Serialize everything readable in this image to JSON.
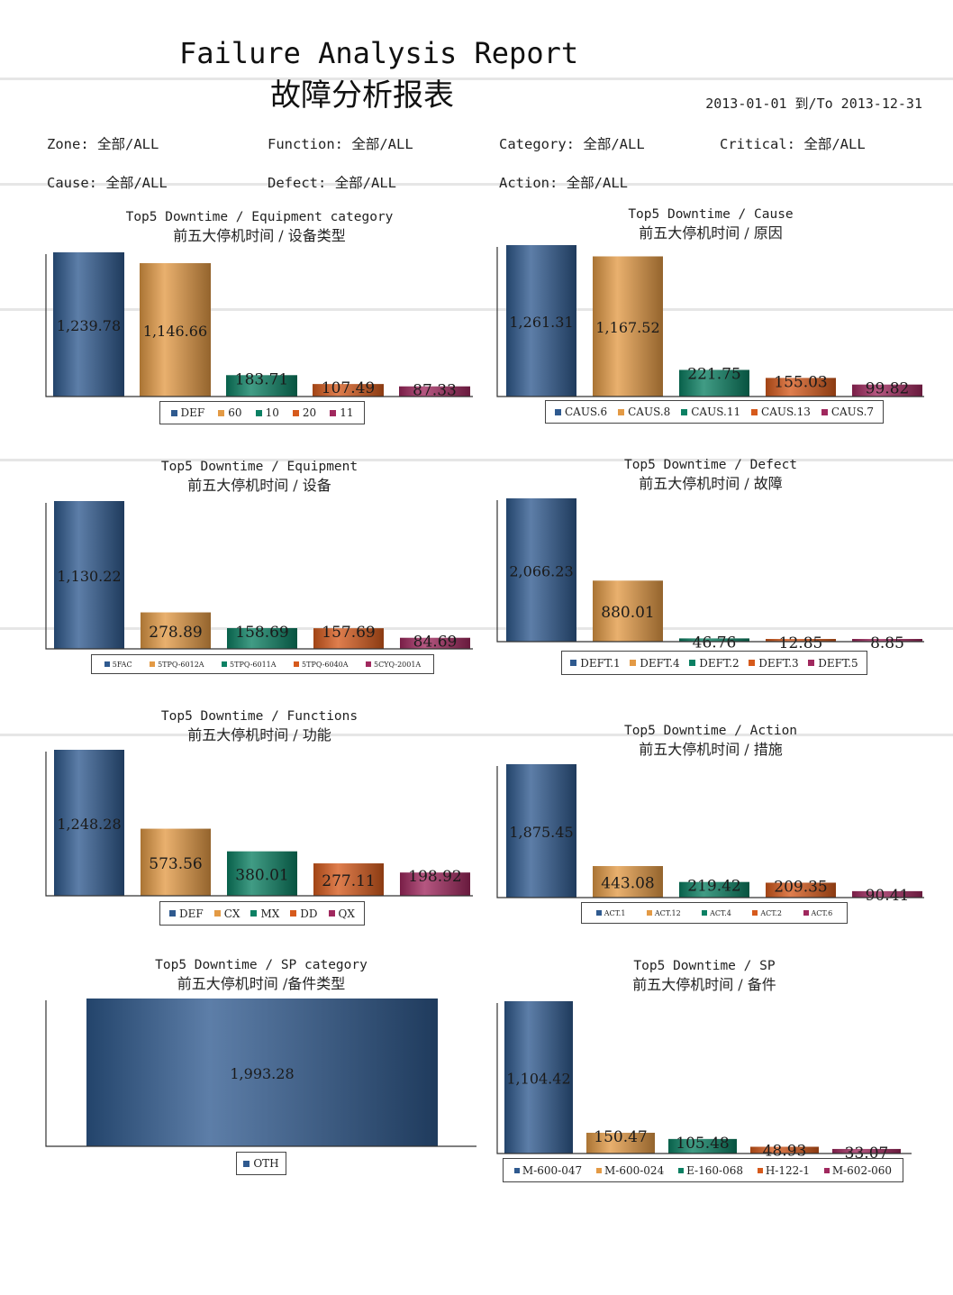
{
  "header": {
    "title_en": "Failure Analysis Report",
    "title_cn": "故障分析报表",
    "date_range": "2013-01-01 到/To 2013-12-31"
  },
  "filters": {
    "zone": "Zone: 全部/ALL",
    "function": "Function: 全部/ALL",
    "category": "Category: 全部/ALL",
    "critical": "Critical: 全部/ALL",
    "cause": "Cause: 全部/ALL",
    "defect": "Defect: 全部/ALL",
    "action": "Action: 全部/ALL"
  },
  "colors": {
    "series": [
      "#2f5a8f",
      "#e39a45",
      "#0b8063",
      "#d65a1c",
      "#a0285e"
    ]
  },
  "chart_data": [
    {
      "id": "equipment-category",
      "type": "bar",
      "title_en": "Top5 Downtime / Equipment category",
      "title_cn": "前五大停机时间 / 设备类型",
      "categories": [
        "DEF",
        "60",
        "10",
        "20",
        "11"
      ],
      "values": [
        1239.78,
        1146.66,
        183.71,
        107.49,
        87.33
      ],
      "labels": [
        "1,239.78",
        "1,146.66",
        "183.71",
        "107.49",
        "87.33"
      ],
      "ylim": [
        0,
        1239.78
      ],
      "legend_position": "bottom"
    },
    {
      "id": "cause",
      "type": "bar",
      "title_en": "Top5 Downtime / Cause",
      "title_cn": "前五大停机时间 / 原因",
      "categories": [
        "CAUS.6",
        "CAUS.8",
        "CAUS.11",
        "CAUS.13",
        "CAUS.7"
      ],
      "values": [
        1261.31,
        1167.52,
        221.75,
        155.03,
        99.82
      ],
      "labels": [
        "1,261.31",
        "1,167.52",
        "221.75",
        "155.03",
        "99.82"
      ],
      "ylim": [
        0,
        1261.31
      ],
      "legend_position": "bottom"
    },
    {
      "id": "equipment",
      "type": "bar",
      "title_en": "Top5 Downtime / Equipment",
      "title_cn": "前五大停机时间 / 设备",
      "categories": [
        "5FAC",
        "5TPQ-6012A",
        "5TPQ-6011A",
        "5TPQ-6040A",
        "5CYQ-2001A"
      ],
      "values": [
        1130.22,
        278.89,
        158.69,
        157.69,
        84.69
      ],
      "labels": [
        "1,130.22",
        "278.89",
        "158.69",
        "157.69",
        "84.69"
      ],
      "ylim": [
        0,
        1130.22
      ],
      "legend_position": "bottom",
      "break_display": true
    },
    {
      "id": "defect",
      "type": "bar",
      "title_en": "Top5 Downtime / Defect",
      "title_cn": "前五大停机时间 / 故障",
      "categories": [
        "DEFT.1",
        "DEFT.4",
        "DEFT.2",
        "DEFT.3",
        "DEFT.5"
      ],
      "values": [
        2066.23,
        880.01,
        46.76,
        12.85,
        8.85
      ],
      "labels": [
        "2,066.23",
        "880.01",
        "46.76",
        "12.85",
        "8.85"
      ],
      "ylim": [
        0,
        2066.23
      ],
      "legend_position": "bottom",
      "break_display": true
    },
    {
      "id": "functions",
      "type": "bar",
      "title_en": "Top5 Downtime / Functions",
      "title_cn": "前五大停机时间 / 功能",
      "categories": [
        "DEF",
        "CX",
        "MX",
        "DD",
        "QX"
      ],
      "values": [
        1248.28,
        573.56,
        380.01,
        277.11,
        198.92
      ],
      "labels": [
        "1,248.28",
        "573.56",
        "380.01",
        "277.11",
        "198.92"
      ],
      "ylim": [
        0,
        1248.28
      ],
      "legend_position": "bottom",
      "break_display": true
    },
    {
      "id": "action",
      "type": "bar",
      "title_en": "Top5 Downtime / Action",
      "title_cn": "前五大停机时间 / 措施",
      "categories": [
        "ACT.1",
        "ACT.12",
        "ACT.4",
        "ACT.2",
        "ACT.6"
      ],
      "values": [
        1875.45,
        443.08,
        219.42,
        209.35,
        90.41
      ],
      "labels": [
        "1,875.45",
        "443.08",
        "219.42",
        "209.35",
        "90.41"
      ],
      "ylim": [
        0,
        1875.45
      ],
      "legend_position": "bottom",
      "break_display": true
    },
    {
      "id": "sp-category",
      "type": "bar",
      "title_en": "Top5 Downtime / SP category",
      "title_cn": "前五大停机时间 /备件类型",
      "categories": [
        "OTH"
      ],
      "values": [
        1993.28
      ],
      "labels": [
        "1,993.28"
      ],
      "ylim": [
        0,
        1993.28
      ],
      "legend_position": "bottom"
    },
    {
      "id": "sp",
      "type": "bar",
      "title_en": "Top5 Downtime / SP",
      "title_cn": "前五大停机时间 / 备件",
      "categories": [
        "M-600-047",
        "M-600-024",
        "E-160-068",
        "H-122-1",
        "M-602-060"
      ],
      "values": [
        1104.42,
        150.47,
        105.48,
        48.93,
        33.07
      ],
      "labels": [
        "1,104.42",
        "150.47",
        "105.48",
        "48.93",
        "33.07"
      ],
      "ylim": [
        0,
        1104.42
      ],
      "legend_position": "bottom",
      "break_display": true
    }
  ]
}
